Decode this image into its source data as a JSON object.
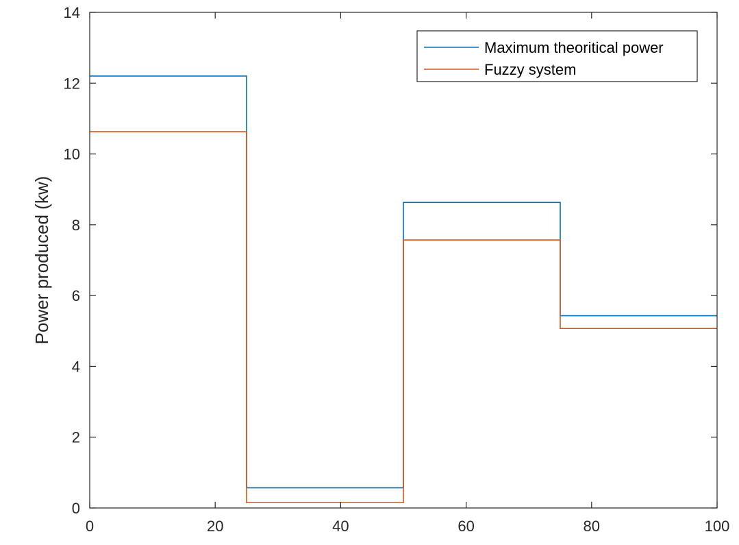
{
  "chart_data": {
    "type": "line",
    "step": true,
    "title": "",
    "xlabel": "",
    "ylabel": "Power produced (kw)",
    "xlim": [
      0,
      100
    ],
    "ylim": [
      0,
      14
    ],
    "xticks": [
      0,
      20,
      40,
      60,
      80,
      100
    ],
    "yticks": [
      0,
      2,
      4,
      6,
      8,
      10,
      12,
      14
    ],
    "grid": false,
    "legend_position": "top-right",
    "series": [
      {
        "name": "Maximum theoritical power",
        "color": "#0072BD",
        "x": [
          0,
          25,
          25,
          50,
          50,
          75,
          75,
          100
        ],
        "y": [
          12.2,
          12.2,
          0.57,
          0.57,
          8.63,
          8.63,
          5.43,
          5.43
        ]
      },
      {
        "name": "Fuzzy system",
        "color": "#D95319",
        "x": [
          0,
          25,
          25,
          50,
          50,
          75,
          75,
          100
        ],
        "y": [
          10.63,
          10.63,
          0.15,
          0.15,
          7.57,
          7.57,
          5.07,
          5.07
        ]
      }
    ]
  }
}
